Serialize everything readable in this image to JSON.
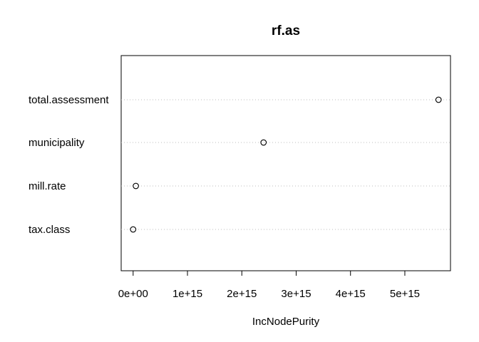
{
  "chart_data": {
    "type": "scatter",
    "title": "rf.as",
    "xlabel": "IncNodePurity",
    "ylabel": "",
    "categories": [
      "total.assessment",
      "municipality",
      "mill.rate",
      "tax.class"
    ],
    "values": [
      5620000000000000.0,
      2400000000000000.0,
      50000000000000.0,
      0.0
    ],
    "xlim": [
      -220000000000000.0,
      5840000000000000.0
    ],
    "xticks": [
      0,
      1000000000000000.0,
      2000000000000000.0,
      3000000000000000.0,
      4000000000000000.0,
      5000000000000000.0
    ],
    "xtick_labels": [
      "0e+00",
      "1e+15",
      "2e+15",
      "3e+15",
      "4e+15",
      "5e+15"
    ],
    "grid": "dotted horizontal lines per category",
    "marker": "open circle",
    "colors": {
      "points": "#000000",
      "grid": "#bebebe",
      "frame": "#000000"
    }
  }
}
